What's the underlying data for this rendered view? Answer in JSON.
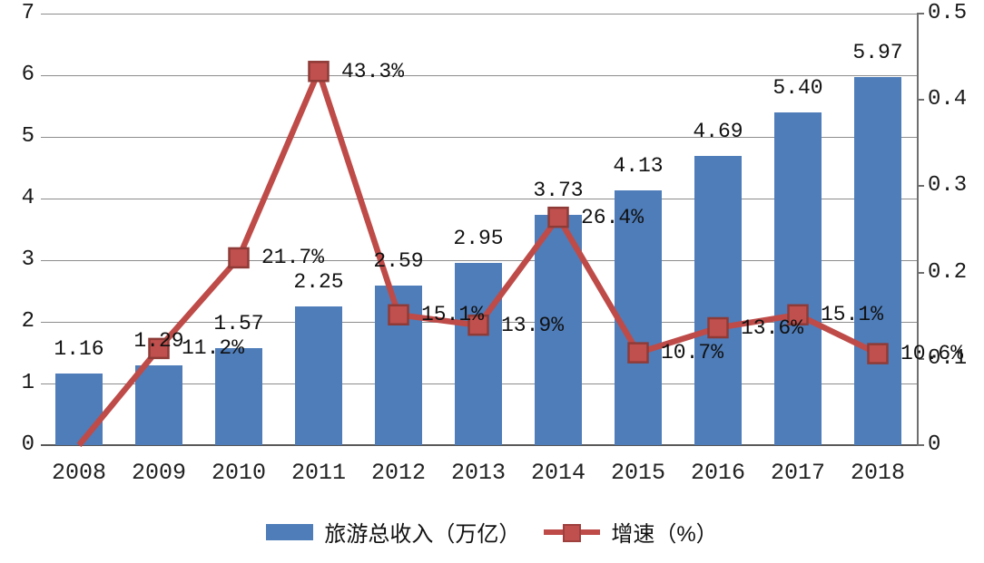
{
  "chart_data": {
    "type": "bar+line",
    "title": "",
    "categories": [
      "2008",
      "2009",
      "2010",
      "2011",
      "2012",
      "2013",
      "2014",
      "2015",
      "2016",
      "2017",
      "2018"
    ],
    "series": [
      {
        "name": "旅游总收入（万亿）",
        "type": "bar",
        "axis": "left",
        "values": [
          1.16,
          1.29,
          1.57,
          2.25,
          2.59,
          2.95,
          3.73,
          4.13,
          4.69,
          5.4,
          5.97
        ],
        "labels": [
          "1.16",
          "1.29",
          "1.57",
          "2.25",
          "2.59",
          "2.95",
          "3.73",
          "4.13",
          "4.69",
          "5.40",
          "5.97"
        ]
      },
      {
        "name": "增速（%）",
        "type": "line",
        "axis": "right",
        "values": [
          0,
          0.112,
          0.217,
          0.433,
          0.151,
          0.139,
          0.264,
          0.107,
          0.136,
          0.151,
          0.106
        ],
        "labels": [
          "",
          "11.2%",
          "21.7%",
          "43.3%",
          "15.1%",
          "13.9%",
          "26.4%",
          "10.7%",
          "13.6%",
          "15.1%",
          "10.6%"
        ],
        "markers": [
          false,
          true,
          true,
          true,
          true,
          true,
          true,
          true,
          true,
          true,
          true
        ]
      }
    ],
    "left_axis": {
      "range": [
        0,
        7
      ],
      "ticks": [
        "0",
        "1",
        "2",
        "3",
        "4",
        "5",
        "6",
        "7"
      ]
    },
    "right_axis": {
      "range": [
        0,
        0.5
      ],
      "ticks": [
        "0",
        "0.1",
        "0.2",
        "0.3",
        "0.4",
        "0.5"
      ]
    },
    "grid": true,
    "legend_position": "bottom",
    "legend": [
      {
        "label": "旅游总收入（万亿）",
        "swatch": "bar"
      },
      {
        "label": "增速（%）",
        "swatch": "line-marker"
      }
    ]
  },
  "colors": {
    "bar": "#4e7dba",
    "line": "#be4b48",
    "marker_fill": "#c0504d",
    "marker_stroke": "#8e3b37",
    "grid": "#8c8c8c",
    "axis": "#595959",
    "text": "#111111"
  }
}
